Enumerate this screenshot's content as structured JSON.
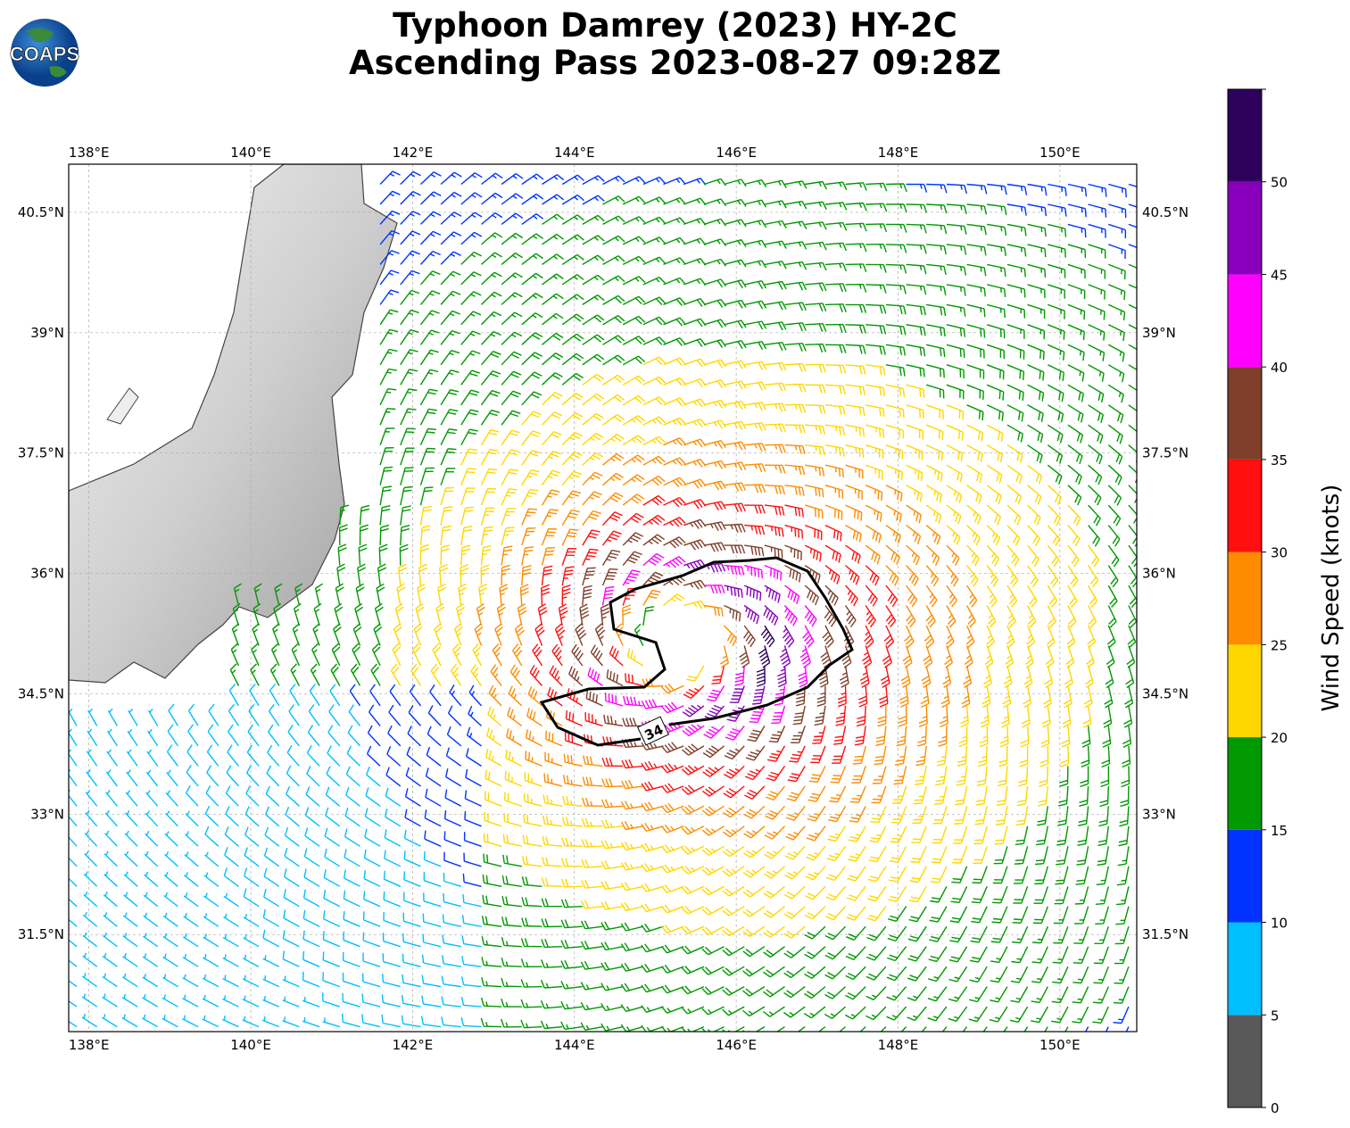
{
  "title": {
    "line1": "Typhoon Damrey (2023) HY-2C",
    "line2": "Ascending Pass 2023-08-27 09:28Z"
  },
  "logo": {
    "text": "COAPS"
  },
  "map": {
    "lon_range": [
      137.75,
      150.95
    ],
    "lat_range": [
      30.29,
      41.1
    ],
    "lon_ticks": [
      "138°E",
      "140°E",
      "142°E",
      "144°E",
      "146°E",
      "148°E",
      "150°E"
    ],
    "lon_values": [
      138,
      140,
      142,
      144,
      146,
      148,
      150
    ],
    "lat_ticks": [
      "40.5°N",
      "39°N",
      "37.5°N",
      "36°N",
      "34.5°N",
      "33°N",
      "31.5°N"
    ],
    "lat_values": [
      40.5,
      39,
      37.5,
      36,
      34.5,
      33,
      31.5
    ],
    "storm_center": [
      145.3,
      35.15
    ],
    "contour_label": "34"
  },
  "colorbar": {
    "label": "Wind Speed (knots)",
    "ticks": [
      "0",
      "5",
      "10",
      "15",
      "20",
      "25",
      "30",
      "35",
      "40",
      "45",
      "50"
    ],
    "range": [
      0,
      55
    ],
    "bins": [
      0,
      5,
      10,
      15,
      20,
      25,
      30,
      35,
      40,
      45,
      50,
      55
    ],
    "colors": [
      "#595959",
      "#00bfff",
      "#0033ff",
      "#009900",
      "#ffd700",
      "#ff8c00",
      "#ff0f0f",
      "#7f3f2a",
      "#ff00ff",
      "#8800bb",
      "#2d005c"
    ]
  }
}
